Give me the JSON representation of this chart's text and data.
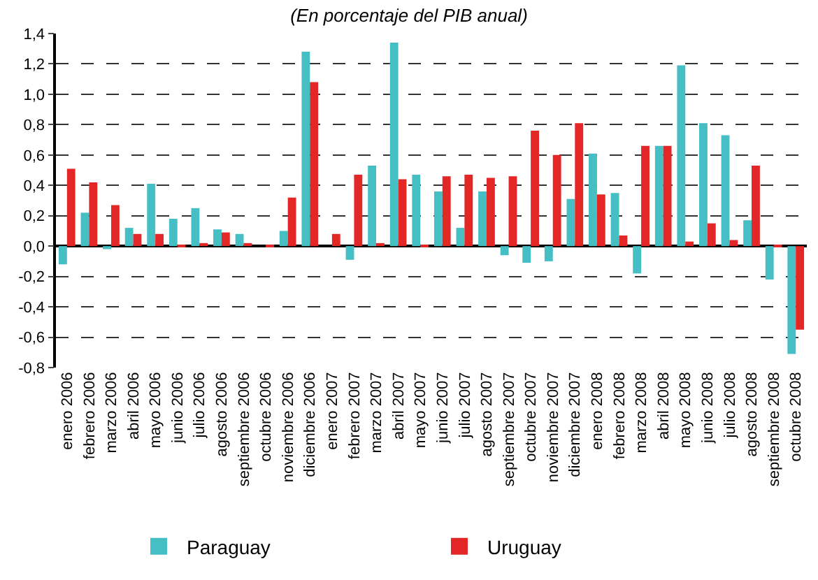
{
  "chart_data": {
    "type": "bar",
    "subtitle": "(En porcentaje del PIB anual)",
    "categories": [
      "enero 2006",
      "febrero 2006",
      "marzo 2006",
      "abril 2006",
      "mayo 2006",
      "junio 2006",
      "julio 2006",
      "agosto 2006",
      "septiembre 2006",
      "octubre 2006",
      "noviembre 2006",
      "diciembre 2006",
      "enero 2007",
      "febrero 2007",
      "marzo 2007",
      "abril 2007",
      "mayo 2007",
      "junio 2007",
      "julio 2007",
      "agosto 2007",
      "septiembre 2007",
      "octubre 2007",
      "noviembre 2007",
      "diciembre 2007",
      "enero 2008",
      "febrero 2008",
      "marzo 2008",
      "abril 2008",
      "mayo 2008",
      "junio 2008",
      "julio 2008",
      "agosto 2008",
      "septiembre 2008",
      "octubre 2008"
    ],
    "series": [
      {
        "name": "Paraguay",
        "color": "#45bec4",
        "values": [
          -0.12,
          0.22,
          -0.02,
          0.12,
          0.41,
          0.18,
          0.25,
          0.11,
          0.08,
          0,
          0.1,
          1.28,
          0,
          -0.09,
          0.53,
          1.34,
          0.47,
          0.36,
          0.12,
          0.36,
          -0.06,
          -0.11,
          -0.1,
          0.31,
          0.61,
          0.35,
          -0.18,
          0.66,
          1.19,
          0.81,
          0.73,
          0.17,
          -0.22,
          -0.71
        ]
      },
      {
        "name": "Uruguay",
        "color": "#e32726",
        "values": [
          0.51,
          0.42,
          0.27,
          0.08,
          0.08,
          0.01,
          0.02,
          0.09,
          0.02,
          0.01,
          0.32,
          1.08,
          0.08,
          0.47,
          0.02,
          0.44,
          0.01,
          0.46,
          0.47,
          0.45,
          0.46,
          0.76,
          0.6,
          0.81,
          0.34,
          0.07,
          0.66,
          0.66,
          0.03,
          0.15,
          0.04,
          0.53,
          0.01,
          -0.55
        ]
      }
    ],
    "ylim": [
      -0.8,
      1.4
    ],
    "yticks": [
      {
        "value": -0.8,
        "label": "-0,8"
      },
      {
        "value": -0.6,
        "label": "-0,6"
      },
      {
        "value": -0.4,
        "label": "-0,4"
      },
      {
        "value": -0.2,
        "label": "-0,2"
      },
      {
        "value": 0,
        "label": "0,0"
      },
      {
        "value": 0.2,
        "label": "0,2"
      },
      {
        "value": 0.4,
        "label": "0,4"
      },
      {
        "value": 0.6,
        "label": "0,6"
      },
      {
        "value": 0.8,
        "label": "0,8"
      },
      {
        "value": 1.0,
        "label": "1,0"
      },
      {
        "value": 1.2,
        "label": "1,2"
      },
      {
        "value": 1.4,
        "label": "1,4"
      }
    ],
    "grid": "y",
    "legend": "bottom"
  }
}
